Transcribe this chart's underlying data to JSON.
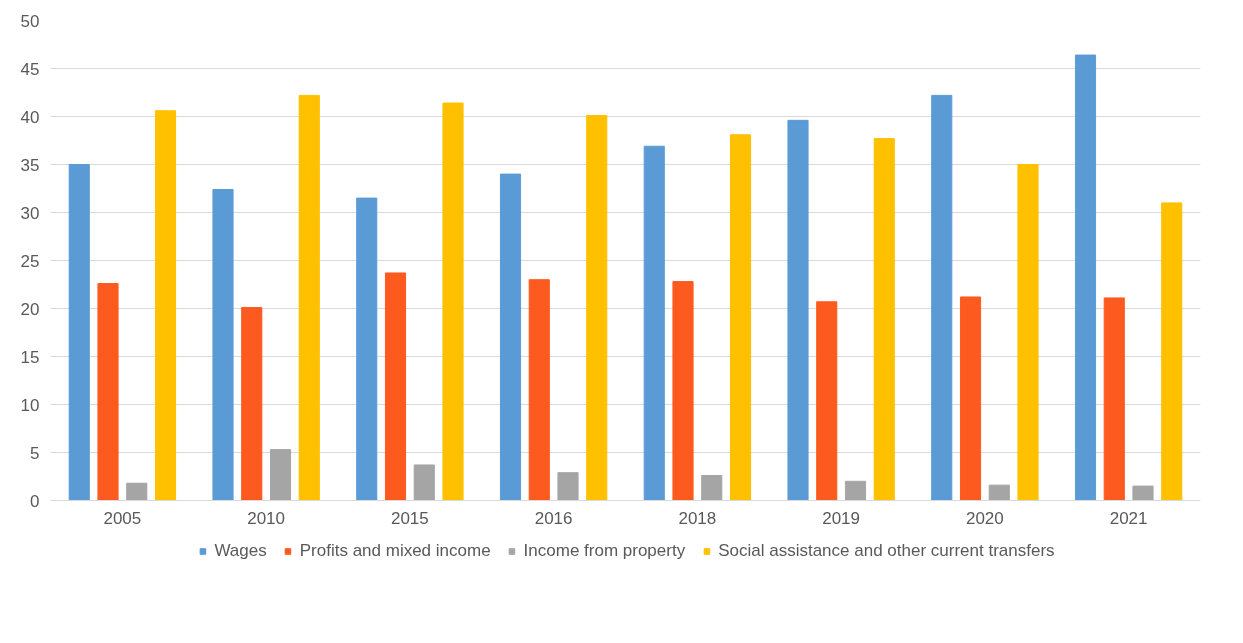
{
  "chart_data": {
    "type": "bar",
    "categories": [
      "2005",
      "2010",
      "2015",
      "2016",
      "2018",
      "2019",
      "2020",
      "2021"
    ],
    "series": [
      {
        "name": "Wages",
        "color": "#5b9bd5",
        "values": [
          35.0,
          32.4,
          31.5,
          34.0,
          36.9,
          39.6,
          42.2,
          46.4
        ]
      },
      {
        "name": "Profits and mixed income",
        "color": "#fc5a1e",
        "values": [
          22.6,
          20.1,
          23.7,
          23.0,
          22.8,
          20.7,
          21.2,
          21.1
        ]
      },
      {
        "name": "Income from property",
        "color": "#a5a5a5",
        "values": [
          1.8,
          5.3,
          3.7,
          2.9,
          2.6,
          2.0,
          1.6,
          1.5
        ]
      },
      {
        "name": "Social assistance and other current transfers",
        "color": "#ffc000",
        "values": [
          40.6,
          42.2,
          41.4,
          40.1,
          38.1,
          37.7,
          35.0,
          31.0
        ]
      }
    ],
    "ylim": [
      0,
      50
    ],
    "yticks": [
      0,
      5,
      10,
      15,
      20,
      25,
      30,
      35,
      40,
      45,
      50
    ],
    "grid": "y",
    "legend": "bottom"
  }
}
